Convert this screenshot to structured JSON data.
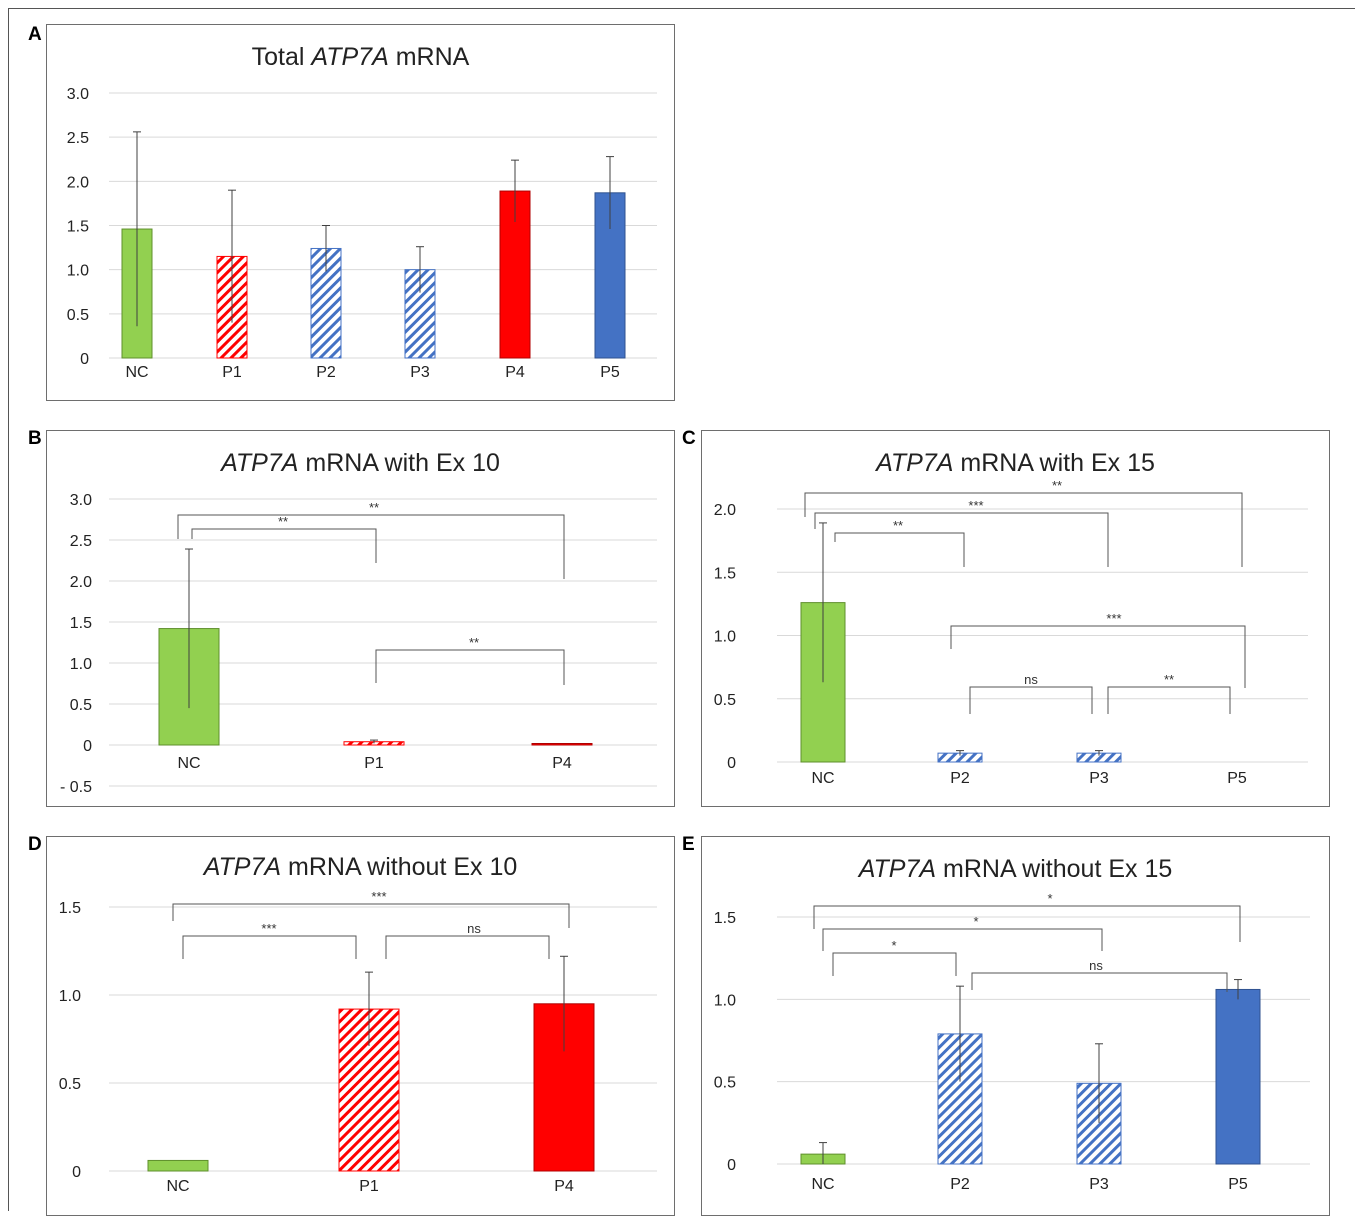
{
  "chart_data": [
    {
      "id": "A",
      "type": "bar",
      "panel_label": "A",
      "title_pre": "Total ",
      "title_italic": "ATP7A",
      "title_post": " mRNA",
      "categories": [
        "NC",
        "P1",
        "P2",
        "P3",
        "P4",
        "P5"
      ],
      "values": [
        1.46,
        1.15,
        1.24,
        1.0,
        1.89,
        1.87
      ],
      "errors": [
        1.1,
        0.75,
        0.26,
        0.26,
        0.35,
        0.41
      ],
      "styles": [
        "green",
        "red-hatch",
        "blue-hatch",
        "blue-hatch",
        "red",
        "blue"
      ],
      "yticks": [
        "0",
        "0.5",
        "1.0",
        "1.5",
        "2.0",
        "2.5",
        "3.0"
      ],
      "ytick_values": [
        0,
        0.5,
        1.0,
        1.5,
        2.0,
        2.5,
        3.0
      ],
      "ylim": [
        0,
        3.0
      ],
      "grid": true,
      "brackets": []
    },
    {
      "id": "B",
      "type": "bar",
      "panel_label": "B",
      "title_pre": "",
      "title_italic": "ATP7A",
      "title_post": " mRNA with Ex 10",
      "categories": [
        "NC",
        "P1",
        "P4"
      ],
      "values": [
        1.42,
        0.04,
        0.005
      ],
      "errors": [
        0.97,
        0.02,
        0.0
      ],
      "styles": [
        "green",
        "red-hatch",
        "red"
      ],
      "yticks": [
        "- 0.5",
        "0",
        "0.5",
        "1.0",
        "1.5",
        "2.0",
        "2.5",
        "3.0"
      ],
      "ytick_values": [
        -0.5,
        0,
        0.5,
        1.0,
        1.5,
        2.0,
        2.5,
        3.0
      ],
      "ylim": [
        -0.5,
        3.0
      ],
      "grid": true,
      "brackets": [
        {
          "from": 0,
          "to": 2,
          "label": "**"
        },
        {
          "from": 0,
          "to": 1,
          "label": "**"
        },
        {
          "from": 1,
          "to": 2,
          "label": "**"
        }
      ]
    },
    {
      "id": "C",
      "type": "bar",
      "panel_label": "C",
      "title_pre": "",
      "title_italic": "ATP7A",
      "title_post": " mRNA with Ex 15",
      "categories": [
        "NC",
        "P2",
        "P3",
        "P5"
      ],
      "values": [
        1.26,
        0.07,
        0.07,
        0.0
      ],
      "errors": [
        0.63,
        0.02,
        0.02,
        0.0
      ],
      "styles": [
        "green",
        "blue-hatch",
        "blue-hatch",
        "blue"
      ],
      "yticks": [
        "0",
        "0.5",
        "1.0",
        "1.5",
        "2.0"
      ],
      "ytick_values": [
        0,
        0.5,
        1.0,
        1.5,
        2.0
      ],
      "ylim": [
        0,
        2.0
      ],
      "grid": true,
      "brackets": [
        {
          "from": 0,
          "to": 3,
          "label": "**"
        },
        {
          "from": 0,
          "to": 2,
          "label": "***"
        },
        {
          "from": 0,
          "to": 1,
          "label": "**"
        },
        {
          "from": 1,
          "to": 3,
          "label": "***"
        },
        {
          "from": 1,
          "to": 2,
          "label": "ns"
        },
        {
          "from": 2,
          "to": 3,
          "label": "**"
        }
      ]
    },
    {
      "id": "D",
      "type": "bar",
      "panel_label": "D",
      "title_pre": "",
      "title_italic": "ATP7A",
      "title_post": " mRNA without Ex 10",
      "categories": [
        "NC",
        "P1",
        "P4"
      ],
      "values": [
        0.06,
        0.92,
        0.95
      ],
      "errors": [
        0.0,
        0.21,
        0.27
      ],
      "styles": [
        "green",
        "red-hatch",
        "red"
      ],
      "yticks": [
        "0",
        "0.5",
        "1.0",
        "1.5"
      ],
      "ytick_values": [
        0,
        0.5,
        1.0,
        1.5
      ],
      "ylim": [
        0,
        1.5
      ],
      "grid": true,
      "brackets": [
        {
          "from": 0,
          "to": 2,
          "label": "***"
        },
        {
          "from": 0,
          "to": 1,
          "label": "***"
        },
        {
          "from": 1,
          "to": 2,
          "label": "ns"
        }
      ]
    },
    {
      "id": "E",
      "type": "bar",
      "panel_label": "E",
      "title_pre": "",
      "title_italic": "ATP7A",
      "title_post": " mRNA without Ex 15",
      "categories": [
        "NC",
        "P2",
        "P3",
        "P5"
      ],
      "values": [
        0.06,
        0.79,
        0.49,
        1.06
      ],
      "errors": [
        0.07,
        0.29,
        0.24,
        0.06
      ],
      "styles": [
        "green",
        "blue-hatch",
        "blue-hatch",
        "blue"
      ],
      "yticks": [
        "0",
        "0.5",
        "1.0",
        "1.5"
      ],
      "ytick_values": [
        0,
        0.5,
        1.0,
        1.5
      ],
      "ylim": [
        0,
        1.5
      ],
      "grid": true,
      "brackets": [
        {
          "from": 0,
          "to": 3,
          "label": "*"
        },
        {
          "from": 0,
          "to": 2,
          "label": "*"
        },
        {
          "from": 0,
          "to": 1,
          "label": "*"
        },
        {
          "from": 1,
          "to": 3,
          "label": "ns"
        }
      ]
    }
  ],
  "colors": {
    "green": "#92d050",
    "red": "#ff0000",
    "blue": "#4472c4",
    "grid": "#d9d9d9",
    "axis_text": "#222222",
    "bracket": "#555555"
  }
}
